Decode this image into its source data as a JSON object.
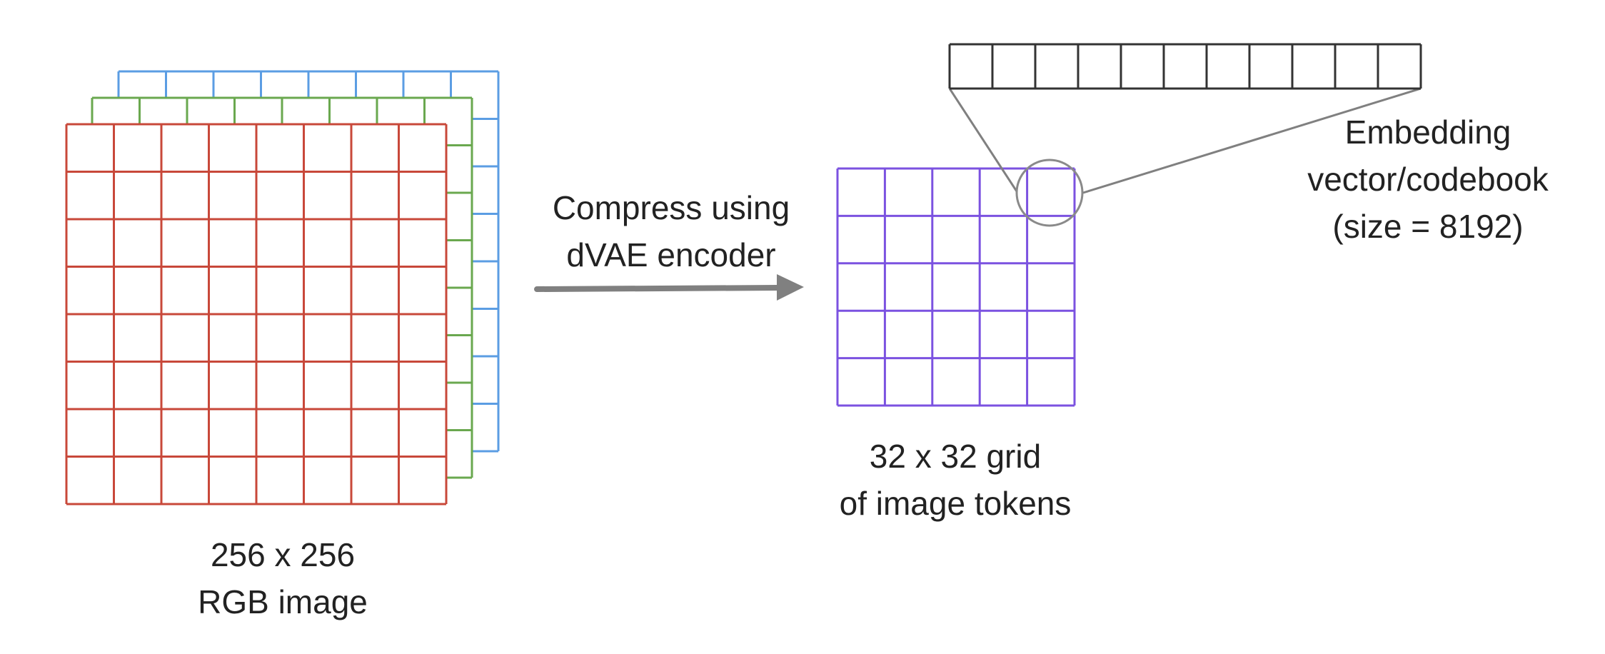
{
  "image_label": {
    "line1": "256 x 256",
    "line2": "RGB image"
  },
  "arrow_label": {
    "line1": "Compress using",
    "line2": "dVAE encoder"
  },
  "token_label": {
    "line1": "32 x 32 grid",
    "line2": "of image tokens"
  },
  "codebook_label": {
    "line1": "Embedding",
    "line2": "vector/codebook",
    "line3": "(size = 8192)"
  },
  "colors": {
    "red_channel": "#c8483a",
    "green_channel": "#6aa84f",
    "blue_channel": "#5b9de3",
    "token_grid": "#7b52e0",
    "codebook": "#333333",
    "arrow": "#808080",
    "connector": "#808080",
    "highlight_circle": "#8a8a8a"
  }
}
